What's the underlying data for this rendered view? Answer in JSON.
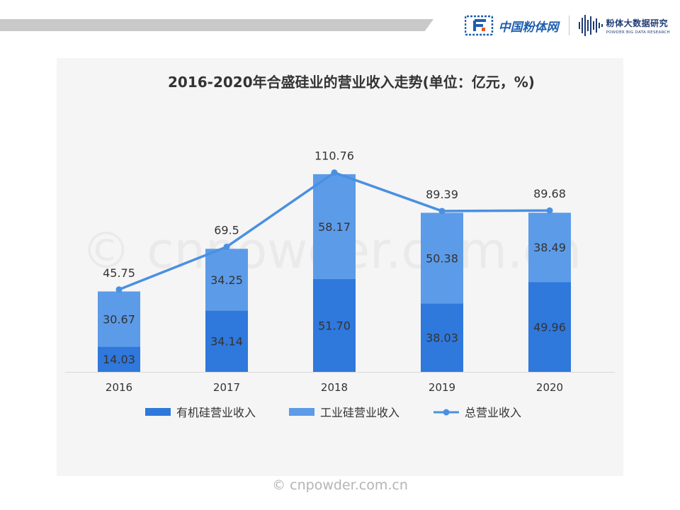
{
  "header": {
    "logo1_text": "中国粉体网",
    "logo2_cn": "粉体大数据研究",
    "logo2_en": "POWDER BIG DATA RESEARCH"
  },
  "watermark": {
    "center": "© cnpowder.com.cn",
    "footer": "© cnpowder.com.cn"
  },
  "colors": {
    "organic": "#2f78dc",
    "industrial": "#5c9be8",
    "total": "#4a90e2",
    "panel": "#f5f5f5"
  },
  "chart_data": {
    "type": "bar",
    "title": "2016-2020年合盛硅业的营业收入走势(单位：亿元，%)",
    "categories": [
      "2016",
      "2017",
      "2018",
      "2019",
      "2020"
    ],
    "stacked": true,
    "series": [
      {
        "name": "有机硅营业收入",
        "type": "bar",
        "values": [
          14.03,
          34.14,
          51.7,
          38.03,
          49.96
        ],
        "labels": [
          "14.03",
          "34.14",
          "51.70",
          "38.03",
          "49.96"
        ]
      },
      {
        "name": "工业硅营业收入",
        "type": "bar",
        "values": [
          30.67,
          34.25,
          58.17,
          50.38,
          38.49
        ],
        "labels": [
          "30.67",
          "34.25",
          "58.17",
          "50.38",
          "38.49"
        ]
      },
      {
        "name": "总营业收入",
        "type": "line",
        "values": [
          45.75,
          69.5,
          110.76,
          89.39,
          89.68
        ],
        "labels": [
          "45.75",
          "69.5",
          "110.76",
          "89.39",
          "89.68"
        ]
      }
    ],
    "ylim": [
      0,
      120
    ],
    "grid": false,
    "legend_position": "bottom"
  }
}
